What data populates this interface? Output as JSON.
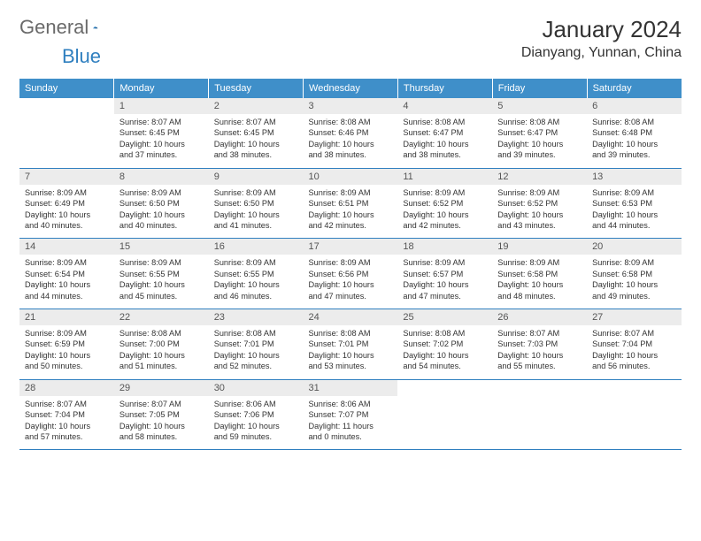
{
  "brand": {
    "part1": "General",
    "part2": "Blue"
  },
  "title": "January 2024",
  "location": "Dianyang, Yunnan, China",
  "colors": {
    "header_bg": "#3f8fc9",
    "daynum_bg": "#ececec",
    "rule": "#2f7fbf",
    "text": "#333333",
    "logo_gray": "#6a6a6a",
    "logo_blue": "#2f7fbf"
  },
  "weekdays": [
    "Sunday",
    "Monday",
    "Tuesday",
    "Wednesday",
    "Thursday",
    "Friday",
    "Saturday"
  ],
  "start_offset": 1,
  "days": [
    {
      "n": 1,
      "sunrise": "8:07 AM",
      "sunset": "6:45 PM",
      "day_h": 10,
      "day_m": 37
    },
    {
      "n": 2,
      "sunrise": "8:07 AM",
      "sunset": "6:45 PM",
      "day_h": 10,
      "day_m": 38
    },
    {
      "n": 3,
      "sunrise": "8:08 AM",
      "sunset": "6:46 PM",
      "day_h": 10,
      "day_m": 38
    },
    {
      "n": 4,
      "sunrise": "8:08 AM",
      "sunset": "6:47 PM",
      "day_h": 10,
      "day_m": 38
    },
    {
      "n": 5,
      "sunrise": "8:08 AM",
      "sunset": "6:47 PM",
      "day_h": 10,
      "day_m": 39
    },
    {
      "n": 6,
      "sunrise": "8:08 AM",
      "sunset": "6:48 PM",
      "day_h": 10,
      "day_m": 39
    },
    {
      "n": 7,
      "sunrise": "8:09 AM",
      "sunset": "6:49 PM",
      "day_h": 10,
      "day_m": 40
    },
    {
      "n": 8,
      "sunrise": "8:09 AM",
      "sunset": "6:50 PM",
      "day_h": 10,
      "day_m": 40
    },
    {
      "n": 9,
      "sunrise": "8:09 AM",
      "sunset": "6:50 PM",
      "day_h": 10,
      "day_m": 41
    },
    {
      "n": 10,
      "sunrise": "8:09 AM",
      "sunset": "6:51 PM",
      "day_h": 10,
      "day_m": 42
    },
    {
      "n": 11,
      "sunrise": "8:09 AM",
      "sunset": "6:52 PM",
      "day_h": 10,
      "day_m": 42
    },
    {
      "n": 12,
      "sunrise": "8:09 AM",
      "sunset": "6:52 PM",
      "day_h": 10,
      "day_m": 43
    },
    {
      "n": 13,
      "sunrise": "8:09 AM",
      "sunset": "6:53 PM",
      "day_h": 10,
      "day_m": 44
    },
    {
      "n": 14,
      "sunrise": "8:09 AM",
      "sunset": "6:54 PM",
      "day_h": 10,
      "day_m": 44
    },
    {
      "n": 15,
      "sunrise": "8:09 AM",
      "sunset": "6:55 PM",
      "day_h": 10,
      "day_m": 45
    },
    {
      "n": 16,
      "sunrise": "8:09 AM",
      "sunset": "6:55 PM",
      "day_h": 10,
      "day_m": 46
    },
    {
      "n": 17,
      "sunrise": "8:09 AM",
      "sunset": "6:56 PM",
      "day_h": 10,
      "day_m": 47
    },
    {
      "n": 18,
      "sunrise": "8:09 AM",
      "sunset": "6:57 PM",
      "day_h": 10,
      "day_m": 47
    },
    {
      "n": 19,
      "sunrise": "8:09 AM",
      "sunset": "6:58 PM",
      "day_h": 10,
      "day_m": 48
    },
    {
      "n": 20,
      "sunrise": "8:09 AM",
      "sunset": "6:58 PM",
      "day_h": 10,
      "day_m": 49
    },
    {
      "n": 21,
      "sunrise": "8:09 AM",
      "sunset": "6:59 PM",
      "day_h": 10,
      "day_m": 50
    },
    {
      "n": 22,
      "sunrise": "8:08 AM",
      "sunset": "7:00 PM",
      "day_h": 10,
      "day_m": 51
    },
    {
      "n": 23,
      "sunrise": "8:08 AM",
      "sunset": "7:01 PM",
      "day_h": 10,
      "day_m": 52
    },
    {
      "n": 24,
      "sunrise": "8:08 AM",
      "sunset": "7:01 PM",
      "day_h": 10,
      "day_m": 53
    },
    {
      "n": 25,
      "sunrise": "8:08 AM",
      "sunset": "7:02 PM",
      "day_h": 10,
      "day_m": 54
    },
    {
      "n": 26,
      "sunrise": "8:07 AM",
      "sunset": "7:03 PM",
      "day_h": 10,
      "day_m": 55
    },
    {
      "n": 27,
      "sunrise": "8:07 AM",
      "sunset": "7:04 PM",
      "day_h": 10,
      "day_m": 56
    },
    {
      "n": 28,
      "sunrise": "8:07 AM",
      "sunset": "7:04 PM",
      "day_h": 10,
      "day_m": 57
    },
    {
      "n": 29,
      "sunrise": "8:07 AM",
      "sunset": "7:05 PM",
      "day_h": 10,
      "day_m": 58
    },
    {
      "n": 30,
      "sunrise": "8:06 AM",
      "sunset": "7:06 PM",
      "day_h": 10,
      "day_m": 59
    },
    {
      "n": 31,
      "sunrise": "8:06 AM",
      "sunset": "7:07 PM",
      "day_h": 11,
      "day_m": 0
    }
  ],
  "labels": {
    "sunrise": "Sunrise:",
    "sunset": "Sunset:",
    "daylight_prefix": "Daylight:",
    "hours_word": "hours",
    "and_word": "and",
    "minutes_word": "minutes."
  }
}
